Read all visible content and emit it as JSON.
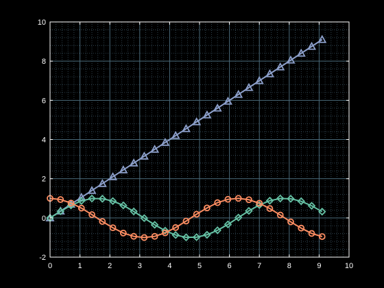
{
  "colors": {
    "background": "#000000",
    "axes": "#ffffff",
    "grid_major": "#4a6a7a",
    "grid_minor": "#3a5260"
  },
  "chart_data": {
    "type": "line",
    "title": "",
    "xlabel": "",
    "ylabel": "",
    "xlim": [
      0,
      10
    ],
    "ylim": [
      -2,
      10
    ],
    "xticks": [
      "0",
      "1",
      "2",
      "3",
      "4",
      "5",
      "6",
      "7",
      "8",
      "9",
      "10"
    ],
    "yticks": [
      "-2",
      "0",
      "2",
      "4",
      "6",
      "8",
      "10"
    ],
    "grid": "major and minor",
    "legend": "none",
    "series": [
      {
        "marker": "triangle",
        "color": "#8da0cb",
        "x": [
          0,
          0.35,
          0.7,
          1.05,
          1.4,
          1.75,
          2.1,
          2.45,
          2.8,
          3.15,
          3.5,
          3.85,
          4.2,
          4.55,
          4.9,
          5.25,
          5.6,
          5.95,
          6.3,
          6.65,
          7,
          7.35,
          7.7,
          8.05,
          8.4,
          8.75,
          9.1
        ],
        "y": [
          0,
          0.35,
          0.7,
          1.05,
          1.4,
          1.75,
          2.1,
          2.45,
          2.8,
          3.15,
          3.5,
          3.85,
          4.2,
          4.55,
          4.9,
          5.25,
          5.6,
          5.95,
          6.3,
          6.65,
          7,
          7.35,
          7.7,
          8.05,
          8.4,
          8.75,
          9.1
        ]
      },
      {
        "marker": "diamond",
        "color": "#66c2a5",
        "x": [
          0,
          0.35,
          0.7,
          1.05,
          1.4,
          1.75,
          2.1,
          2.45,
          2.8,
          3.15,
          3.5,
          3.85,
          4.2,
          4.55,
          4.9,
          5.25,
          5.6,
          5.95,
          6.3,
          6.65,
          7,
          7.35,
          7.7,
          8.05,
          8.4,
          8.75,
          9.1
        ],
        "y": [
          0,
          0.34,
          0.64,
          0.87,
          0.99,
          0.98,
          0.86,
          0.64,
          0.33,
          -0.01,
          -0.35,
          -0.65,
          -0.87,
          -0.99,
          -0.98,
          -0.86,
          -0.63,
          -0.33,
          0.02,
          0.36,
          0.66,
          0.88,
          0.99,
          0.98,
          0.85,
          0.62,
          0.32
        ]
      },
      {
        "marker": "circle",
        "color": "#fc8d62",
        "x": [
          0,
          0.35,
          0.7,
          1.05,
          1.4,
          1.75,
          2.1,
          2.45,
          2.8,
          3.15,
          3.5,
          3.85,
          4.2,
          4.55,
          4.9,
          5.25,
          5.6,
          5.95,
          6.3,
          6.65,
          7,
          7.35,
          7.7,
          8.05,
          8.4,
          8.75,
          9.1
        ],
        "y": [
          1,
          0.94,
          0.76,
          0.5,
          0.17,
          -0.18,
          -0.5,
          -0.77,
          -0.94,
          -1,
          -0.94,
          -0.76,
          -0.49,
          -0.16,
          0.19,
          0.51,
          0.78,
          0.95,
          1,
          0.93,
          0.75,
          0.48,
          0.15,
          -0.2,
          -0.52,
          -0.79,
          -0.95
        ]
      }
    ]
  }
}
